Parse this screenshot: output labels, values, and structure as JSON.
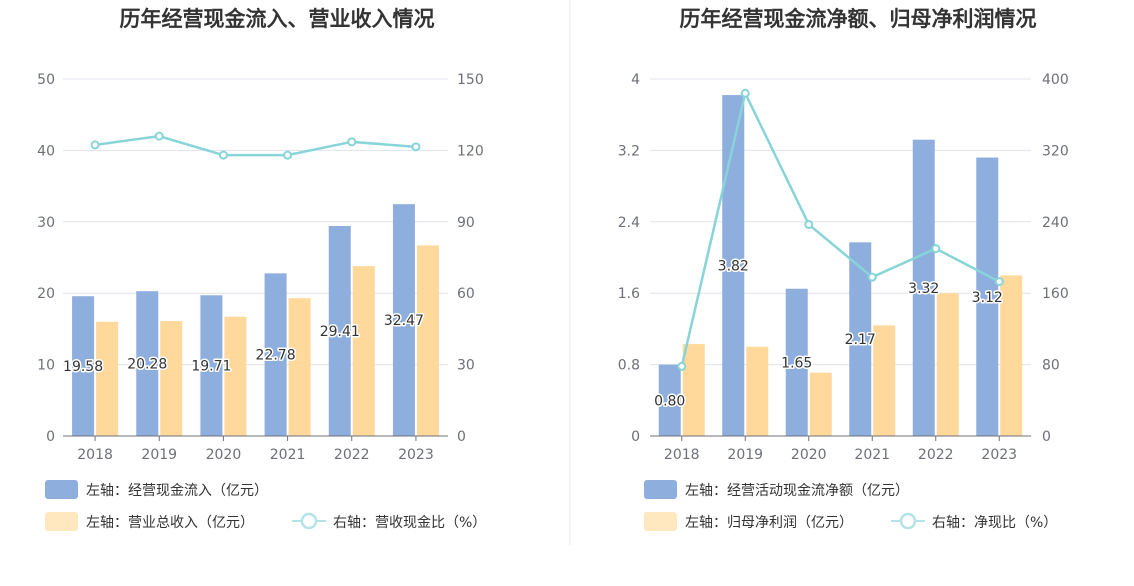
{
  "colors": {
    "left_bar": "#8eaedd",
    "right_bar": "#ffd99b",
    "line": "#87d4d9",
    "grid": "#e0e3ec",
    "divider": "#e6e9f0"
  },
  "chart_data": [
    {
      "type": "bar",
      "title": "历年经营现金流入、营业收入情况",
      "categories": [
        "2018",
        "2019",
        "2020",
        "2021",
        "2022",
        "2023"
      ],
      "y_left": {
        "ticks": [
          "0",
          "10",
          "20",
          "30",
          "40",
          "50"
        ],
        "range": [
          0,
          50
        ]
      },
      "y_right": {
        "ticks": [
          "0",
          "30",
          "60",
          "90",
          "120",
          "150"
        ],
        "range": [
          0,
          150
        ]
      },
      "series": [
        {
          "name": "左轴：经营现金流入（亿元）",
          "axis": "left",
          "kind": "bar",
          "values": [
            19.58,
            20.28,
            19.71,
            22.78,
            29.41,
            32.47
          ],
          "labels": [
            "19.58",
            "20.28",
            "19.71",
            "22.78",
            "29.41",
            "32.47"
          ]
        },
        {
          "name": "左轴：营业总收入（亿元）",
          "axis": "left",
          "kind": "bar",
          "values": [
            16.0,
            16.1,
            16.7,
            19.3,
            23.8,
            26.7
          ]
        },
        {
          "name": "右轴：营收现金比（%）",
          "axis": "right",
          "kind": "line",
          "values": [
            122.3,
            126,
            118,
            118,
            123.6,
            121.5
          ]
        }
      ]
    },
    {
      "type": "bar",
      "title": "历年经营现金流净额、归母净利润情况",
      "categories": [
        "2018",
        "2019",
        "2020",
        "2021",
        "2022",
        "2023"
      ],
      "y_left": {
        "ticks": [
          "0",
          "0.8",
          "1.6",
          "2.4",
          "3.2",
          "4"
        ],
        "range": [
          0,
          4
        ]
      },
      "y_right": {
        "ticks": [
          "0",
          "80",
          "160",
          "240",
          "320",
          "400"
        ],
        "range": [
          0,
          400
        ]
      },
      "series": [
        {
          "name": "左轴：经营活动现金流净额（亿元）",
          "axis": "left",
          "kind": "bar",
          "values": [
            0.8,
            3.82,
            1.65,
            2.17,
            3.32,
            3.12
          ],
          "labels": [
            "0.80",
            "3.82",
            "1.65",
            "2.17",
            "3.32",
            "3.12"
          ]
        },
        {
          "name": "左轴：归母净利润（亿元）",
          "axis": "left",
          "kind": "bar",
          "values": [
            1.03,
            1.0,
            0.71,
            1.24,
            1.6,
            1.8
          ]
        },
        {
          "name": "右轴：净现比（%）",
          "axis": "right",
          "kind": "line",
          "values": [
            78,
            384,
            237,
            178,
            210,
            173
          ]
        }
      ]
    }
  ]
}
